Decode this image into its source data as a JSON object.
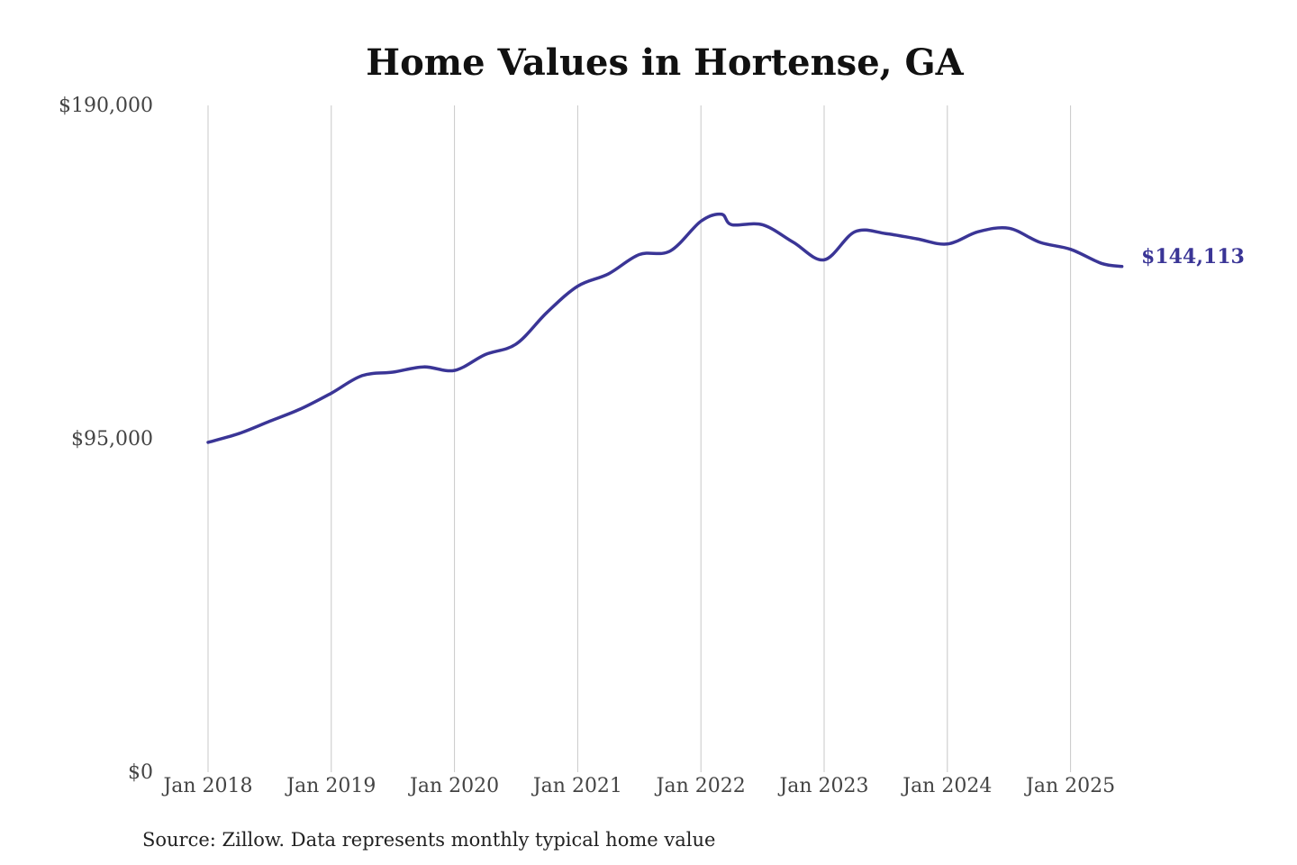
{
  "chart_data": {
    "type": "line",
    "title": "Home Values in Hortense, GA",
    "source": "Source: Zillow. Data represents monthly typical home value",
    "ylim": [
      0,
      190000
    ],
    "y_ticks": [
      {
        "value": 0,
        "label": "$0"
      },
      {
        "value": 95000,
        "label": "$95,000"
      },
      {
        "value": 190000,
        "label": "$190,000"
      }
    ],
    "xlim": [
      "2018-01",
      "2025-06"
    ],
    "x_ticks": [
      {
        "value": "2018-01",
        "label": "Jan 2018"
      },
      {
        "value": "2019-01",
        "label": "Jan 2019"
      },
      {
        "value": "2020-01",
        "label": "Jan 2020"
      },
      {
        "value": "2021-01",
        "label": "Jan 2021"
      },
      {
        "value": "2022-01",
        "label": "Jan 2022"
      },
      {
        "value": "2023-01",
        "label": "Jan 2023"
      },
      {
        "value": "2024-01",
        "label": "Jan 2024"
      },
      {
        "value": "2025-01",
        "label": "Jan 2025"
      }
    ],
    "grid": "vertical",
    "end_label": "$144,113",
    "color": "#3a3596",
    "series": [
      {
        "x": [
          "2018-01",
          "2018-04",
          "2018-07",
          "2018-10",
          "2019-01",
          "2019-04",
          "2019-07",
          "2019-10",
          "2020-01",
          "2020-04",
          "2020-07",
          "2020-10",
          "2021-01",
          "2021-04",
          "2021-07",
          "2021-10",
          "2022-01",
          "2022-03",
          "2022-04",
          "2022-07",
          "2022-10",
          "2023-01",
          "2023-04",
          "2023-07",
          "2023-10",
          "2024-01",
          "2024-04",
          "2024-07",
          "2024-10",
          "2025-01",
          "2025-04",
          "2025-06"
        ],
        "values": [
          94000,
          96500,
          100000,
          103500,
          108000,
          113000,
          114000,
          115500,
          114500,
          119000,
          122000,
          131000,
          138500,
          142000,
          147500,
          148500,
          157000,
          159000,
          156000,
          156000,
          151000,
          146000,
          154000,
          153500,
          152000,
          150500,
          154000,
          155000,
          151000,
          149000,
          145000,
          144113
        ]
      }
    ]
  }
}
